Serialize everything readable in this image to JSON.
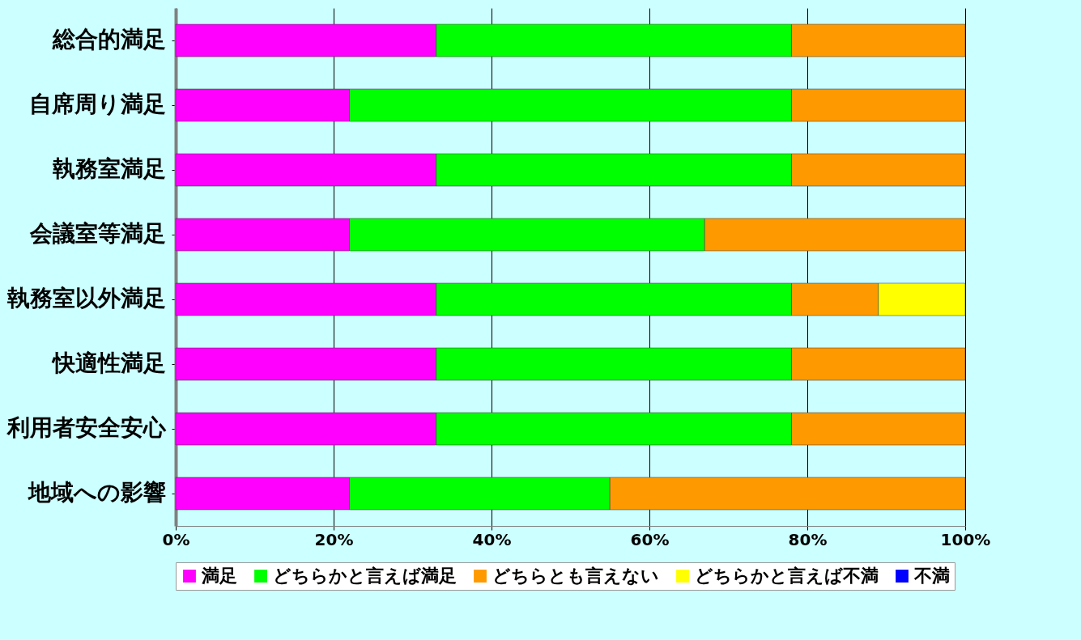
{
  "chart_data": {
    "type": "bar",
    "orientation": "horizontal",
    "stacked": true,
    "categories": [
      "総合的満足",
      "自席周り満足",
      "執務室満足",
      "会議室等満足",
      "執務室以外満足",
      "快適性満足",
      "利用者安全安心",
      "地域への影響"
    ],
    "series": [
      {
        "name": "満足",
        "color": "#ff00ff",
        "values": [
          33,
          22,
          33,
          22,
          33,
          33,
          33,
          22
        ]
      },
      {
        "name": "どちらかと言えば満足",
        "color": "#00ff00",
        "values": [
          45,
          56,
          45,
          45,
          45,
          45,
          45,
          33
        ]
      },
      {
        "name": "どちらとも言えない",
        "color": "#ff9900",
        "values": [
          22,
          22,
          22,
          33,
          11,
          22,
          22,
          45
        ]
      },
      {
        "name": "どちらかと言えば不満",
        "color": "#ffff00",
        "values": [
          null,
          null,
          null,
          null,
          11,
          null,
          null,
          null
        ]
      },
      {
        "name": "不満",
        "color": "#0000ff",
        "values": [
          null,
          null,
          null,
          null,
          null,
          null,
          null,
          null
        ]
      }
    ],
    "xlim": [
      0,
      100
    ],
    "xticks": [
      {
        "value": 0,
        "label": "0%"
      },
      {
        "value": 20,
        "label": "20%"
      },
      {
        "value": 40,
        "label": "40%"
      },
      {
        "value": 60,
        "label": "60%"
      },
      {
        "value": 80,
        "label": "80%"
      },
      {
        "value": 100,
        "label": "100%"
      }
    ],
    "grid": "x",
    "legend": "bottom"
  }
}
